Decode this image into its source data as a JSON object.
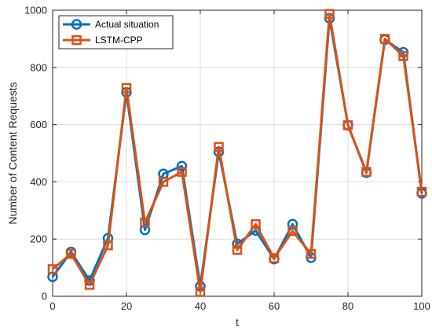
{
  "chart_data": {
    "type": "line",
    "title": "",
    "xlabel": "t",
    "ylabel": "Number of Content Requests",
    "xlim": [
      0,
      100
    ],
    "ylim": [
      0,
      1000
    ],
    "xticks": [
      0,
      20,
      40,
      60,
      80,
      100
    ],
    "yticks": [
      0,
      200,
      400,
      600,
      800,
      1000
    ],
    "grid": true,
    "legend_position": "top-left",
    "x": [
      0,
      5,
      10,
      15,
      20,
      25,
      30,
      35,
      40,
      45,
      50,
      55,
      60,
      65,
      70,
      75,
      80,
      85,
      90,
      95,
      100
    ],
    "series": [
      {
        "name": "Actual situation",
        "color": "#0072BD",
        "marker": "circle",
        "values": [
          68,
          155,
          55,
          203,
          713,
          232,
          428,
          455,
          35,
          505,
          183,
          230,
          130,
          252,
          135,
          972,
          598,
          432,
          897,
          853,
          360
        ]
      },
      {
        "name": "LSTM-CPP",
        "color": "#D95319",
        "marker": "square",
        "values": [
          95,
          148,
          40,
          178,
          728,
          258,
          400,
          435,
          15,
          522,
          162,
          252,
          133,
          228,
          148,
          987,
          598,
          435,
          900,
          840,
          365
        ]
      }
    ]
  }
}
